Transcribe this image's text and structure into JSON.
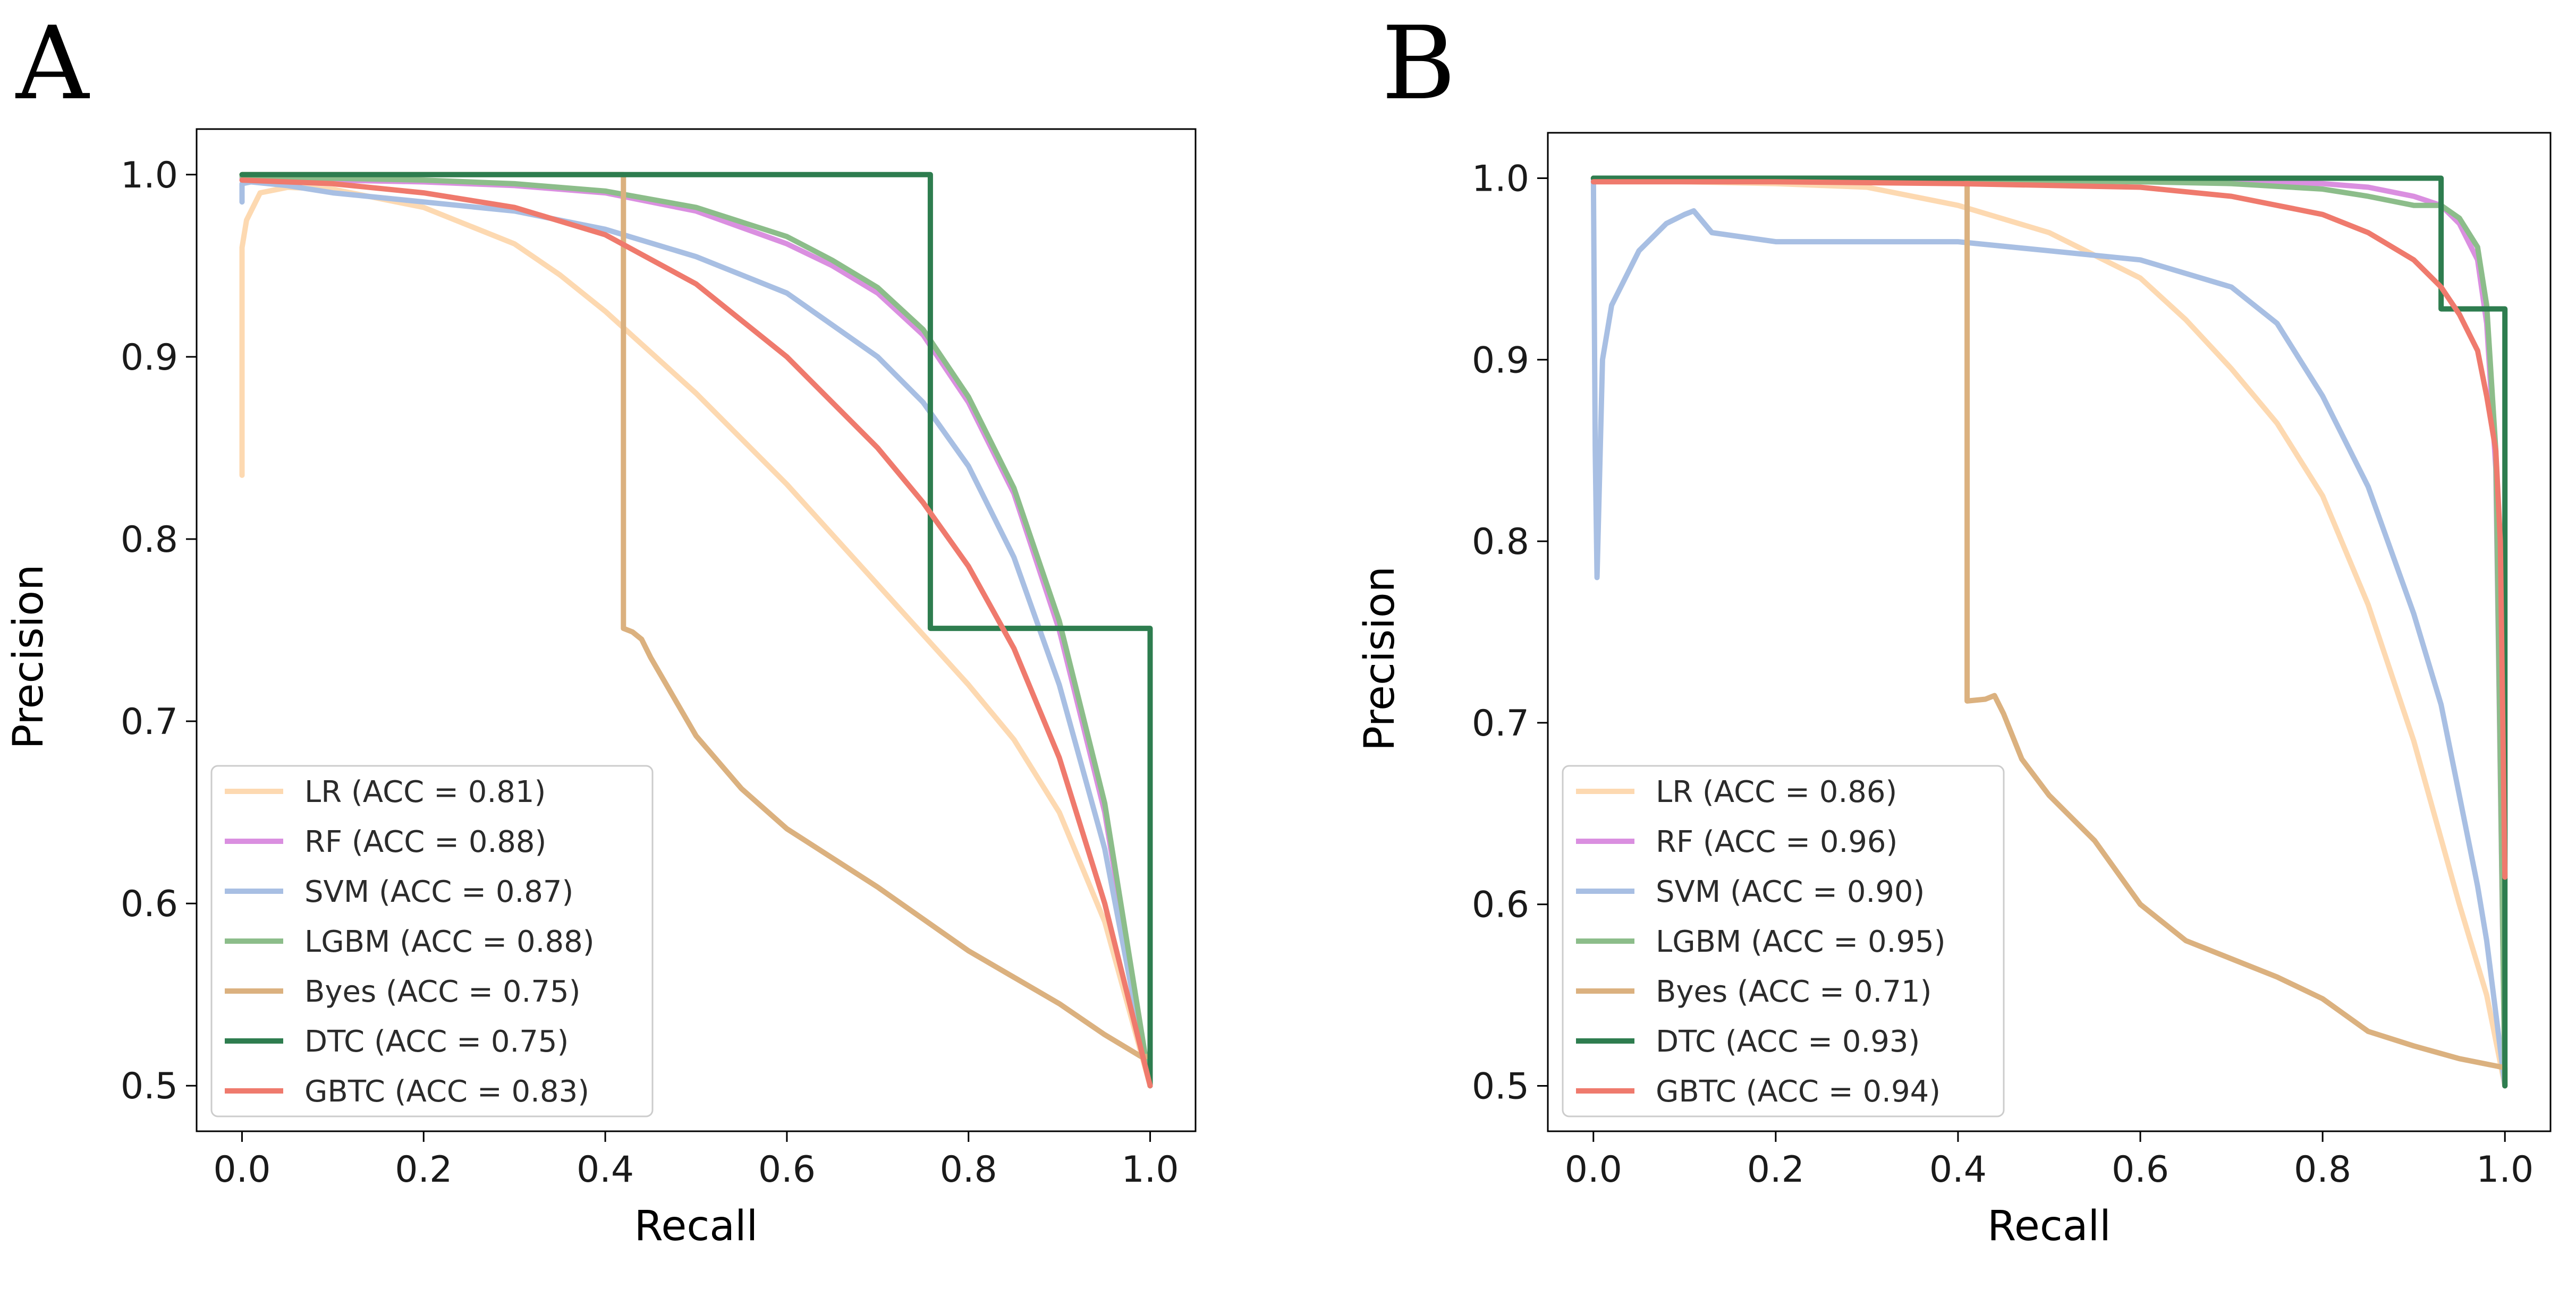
{
  "chart_data": [
    {
      "type": "line",
      "panel_label": "A",
      "xlabel": "Recall",
      "ylabel": "Precision",
      "xlim": [
        -0.05,
        1.05
      ],
      "ylim": [
        0.475,
        1.025
      ],
      "xticks": [
        0.0,
        0.2,
        0.4,
        0.6,
        0.8,
        1.0
      ],
      "xtick_labels": [
        "0.0",
        "0.2",
        "0.4",
        "0.6",
        "0.8",
        "1.0"
      ],
      "yticks": [
        0.5,
        0.6,
        0.7,
        0.8,
        0.9,
        1.0
      ],
      "ytick_labels": [
        "0.5",
        "0.6",
        "0.7",
        "0.8",
        "0.9",
        "1.0"
      ],
      "grid": false,
      "legend_position": "lower-left",
      "series": [
        {
          "name": "LR (ACC = 0.81)",
          "color": "#fdd9b1",
          "x": [
            0.0,
            0.0,
            0.005,
            0.02,
            0.05,
            0.1,
            0.2,
            0.3,
            0.35,
            0.4,
            0.5,
            0.6,
            0.7,
            0.8,
            0.85,
            0.9,
            0.95,
            1.0
          ],
          "y": [
            0.835,
            0.96,
            0.975,
            0.99,
            0.993,
            0.992,
            0.982,
            0.962,
            0.945,
            0.925,
            0.88,
            0.83,
            0.775,
            0.72,
            0.69,
            0.65,
            0.59,
            0.5
          ]
        },
        {
          "name": "RF (ACC = 0.88)",
          "color": "#da8fe0",
          "x": [
            0.0,
            0.1,
            0.2,
            0.3,
            0.4,
            0.5,
            0.6,
            0.65,
            0.7,
            0.75,
            0.8,
            0.85,
            0.9,
            0.95,
            1.0
          ],
          "y": [
            0.998,
            0.997,
            0.996,
            0.994,
            0.99,
            0.98,
            0.962,
            0.95,
            0.935,
            0.912,
            0.875,
            0.825,
            0.75,
            0.65,
            0.5
          ]
        },
        {
          "name": "SVM (ACC = 0.87)",
          "color": "#a8bfe3",
          "x": [
            0.0,
            0.0,
            0.01,
            0.05,
            0.1,
            0.2,
            0.3,
            0.4,
            0.5,
            0.6,
            0.7,
            0.75,
            0.8,
            0.85,
            0.9,
            0.95,
            1.0
          ],
          "y": [
            0.985,
            0.995,
            0.996,
            0.994,
            0.99,
            0.985,
            0.98,
            0.97,
            0.955,
            0.935,
            0.9,
            0.875,
            0.84,
            0.79,
            0.72,
            0.63,
            0.5
          ]
        },
        {
          "name": "LGBM (ACC = 0.88)",
          "color": "#8cbd8a",
          "x": [
            0.0,
            0.1,
            0.2,
            0.3,
            0.4,
            0.5,
            0.6,
            0.65,
            0.7,
            0.75,
            0.8,
            0.85,
            0.9,
            0.95,
            1.0
          ],
          "y": [
            0.999,
            0.998,
            0.997,
            0.995,
            0.991,
            0.982,
            0.966,
            0.953,
            0.938,
            0.915,
            0.878,
            0.828,
            0.755,
            0.655,
            0.5
          ]
        },
        {
          "name": "Byes (ACC = 0.75)",
          "color": "#dbb17f",
          "x": [
            0.0,
            0.42,
            0.42,
            0.43,
            0.44,
            0.45,
            0.5,
            0.55,
            0.6,
            0.7,
            0.8,
            0.9,
            0.95,
            0.99,
            1.0,
            1.0
          ],
          "y": [
            1.0,
            1.0,
            0.751,
            0.749,
            0.745,
            0.735,
            0.692,
            0.663,
            0.641,
            0.609,
            0.574,
            0.545,
            0.528,
            0.516,
            0.516,
            0.5
          ]
        },
        {
          "name": "DTC (ACC = 0.75)",
          "color": "#2e7d4f",
          "x": [
            0.0,
            0.758,
            0.758,
            1.0,
            1.0
          ],
          "y": [
            1.0,
            1.0,
            0.751,
            0.751,
            0.5
          ]
        },
        {
          "name": "GBTC (ACC = 0.83)",
          "color": "#ef7a6d",
          "x": [
            0.0,
            0.1,
            0.2,
            0.3,
            0.4,
            0.5,
            0.6,
            0.7,
            0.75,
            0.8,
            0.85,
            0.9,
            0.95,
            1.0
          ],
          "y": [
            0.997,
            0.995,
            0.99,
            0.982,
            0.967,
            0.94,
            0.9,
            0.85,
            0.82,
            0.785,
            0.74,
            0.68,
            0.6,
            0.5
          ]
        }
      ]
    },
    {
      "type": "line",
      "panel_label": "B",
      "xlabel": "Recall",
      "ylabel": "Precision",
      "xlim": [
        -0.05,
        1.05
      ],
      "ylim": [
        0.475,
        1.025
      ],
      "xticks": [
        0.0,
        0.2,
        0.4,
        0.6,
        0.8,
        1.0
      ],
      "xtick_labels": [
        "0.0",
        "0.2",
        "0.4",
        "0.6",
        "0.8",
        "1.0"
      ],
      "yticks": [
        0.5,
        0.6,
        0.7,
        0.8,
        0.9,
        1.0
      ],
      "ytick_labels": [
        "0.5",
        "0.6",
        "0.7",
        "0.8",
        "0.9",
        "1.0"
      ],
      "grid": false,
      "legend_position": "lower-left",
      "series": [
        {
          "name": "LR (ACC = 0.86)",
          "color": "#fdd9b1",
          "x": [
            0.0,
            0.1,
            0.2,
            0.3,
            0.4,
            0.5,
            0.6,
            0.65,
            0.7,
            0.75,
            0.8,
            0.85,
            0.9,
            0.95,
            0.98,
            1.0
          ],
          "y": [
            0.999,
            0.998,
            0.997,
            0.995,
            0.985,
            0.97,
            0.945,
            0.922,
            0.895,
            0.865,
            0.825,
            0.765,
            0.69,
            0.6,
            0.55,
            0.5
          ]
        },
        {
          "name": "RF (ACC = 0.96)",
          "color": "#da8fe0",
          "x": [
            0.0,
            0.2,
            0.4,
            0.6,
            0.7,
            0.8,
            0.85,
            0.9,
            0.93,
            0.95,
            0.97,
            0.98,
            0.99,
            1.0
          ],
          "y": [
            1.0,
            1.0,
            1.0,
            0.999,
            0.998,
            0.997,
            0.995,
            0.99,
            0.985,
            0.975,
            0.955,
            0.92,
            0.84,
            0.5
          ]
        },
        {
          "name": "SVM (ACC = 0.90)",
          "color": "#a8bfe3",
          "x": [
            0.0,
            0.002,
            0.004,
            0.01,
            0.02,
            0.05,
            0.08,
            0.1,
            0.11,
            0.13,
            0.2,
            0.3,
            0.4,
            0.5,
            0.6,
            0.7,
            0.75,
            0.8,
            0.85,
            0.9,
            0.93,
            0.95,
            0.97,
            0.98,
            0.99,
            1.0
          ],
          "y": [
            1.0,
            0.85,
            0.78,
            0.9,
            0.93,
            0.96,
            0.975,
            0.98,
            0.982,
            0.97,
            0.965,
            0.965,
            0.965,
            0.96,
            0.955,
            0.94,
            0.92,
            0.88,
            0.83,
            0.76,
            0.71,
            0.66,
            0.61,
            0.58,
            0.54,
            0.5
          ]
        },
        {
          "name": "LGBM (ACC = 0.95)",
          "color": "#8cbd8a",
          "x": [
            0.0,
            0.2,
            0.4,
            0.6,
            0.7,
            0.8,
            0.85,
            0.9,
            0.93,
            0.95,
            0.97,
            0.98,
            0.99,
            1.0
          ],
          "y": [
            1.0,
            1.0,
            0.999,
            0.998,
            0.997,
            0.994,
            0.99,
            0.985,
            0.985,
            0.978,
            0.962,
            0.93,
            0.85,
            0.5
          ]
        },
        {
          "name": "Byes (ACC = 0.71)",
          "color": "#dbb17f",
          "x": [
            0.0,
            0.41,
            0.41,
            0.43,
            0.44,
            0.45,
            0.47,
            0.5,
            0.55,
            0.6,
            0.65,
            0.7,
            0.75,
            0.8,
            0.85,
            0.9,
            0.95,
            1.0,
            1.0
          ],
          "y": [
            1.0,
            1.0,
            0.712,
            0.713,
            0.715,
            0.705,
            0.68,
            0.66,
            0.635,
            0.6,
            0.58,
            0.57,
            0.56,
            0.548,
            0.53,
            0.522,
            0.515,
            0.51,
            0.5
          ]
        },
        {
          "name": "DTC (ACC = 0.93)",
          "color": "#2e7d4f",
          "x": [
            0.0,
            0.93,
            0.93,
            1.0,
            1.0
          ],
          "y": [
            1.0,
            1.0,
            0.928,
            0.928,
            0.5
          ]
        },
        {
          "name": "GBTC (ACC = 0.94)",
          "color": "#ef7a6d",
          "x": [
            0.0,
            0.2,
            0.4,
            0.6,
            0.7,
            0.8,
            0.85,
            0.9,
            0.93,
            0.95,
            0.97,
            0.98,
            0.99,
            0.995,
            1.0
          ],
          "y": [
            0.998,
            0.998,
            0.997,
            0.995,
            0.99,
            0.98,
            0.97,
            0.955,
            0.94,
            0.925,
            0.905,
            0.88,
            0.85,
            0.8,
            0.615
          ]
        }
      ]
    }
  ]
}
